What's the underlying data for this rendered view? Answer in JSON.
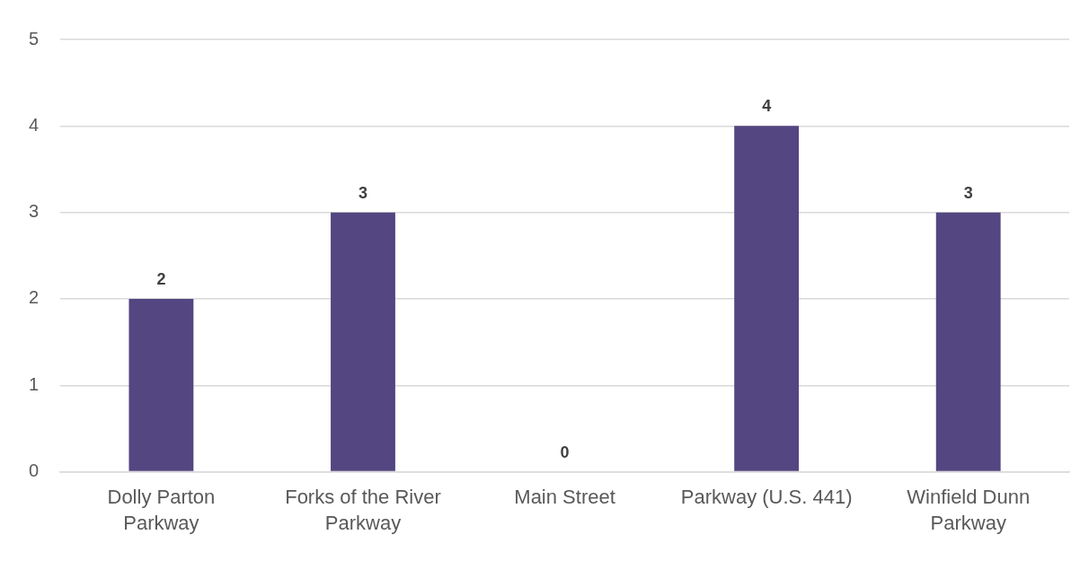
{
  "chart_data": {
    "type": "bar",
    "categories": [
      "Dolly Parton Parkway",
      "Forks of the River Parkway",
      "Main Street",
      "Parkway (U.S. 441)",
      "Winfield Dunn Parkway"
    ],
    "values": [
      2,
      3,
      0,
      4,
      3
    ],
    "color": "#534681",
    "ylim": [
      0,
      5
    ],
    "yticks": [
      0,
      1,
      2,
      3,
      4,
      5
    ],
    "grid": "y",
    "data_labels": true,
    "legend": false
  }
}
